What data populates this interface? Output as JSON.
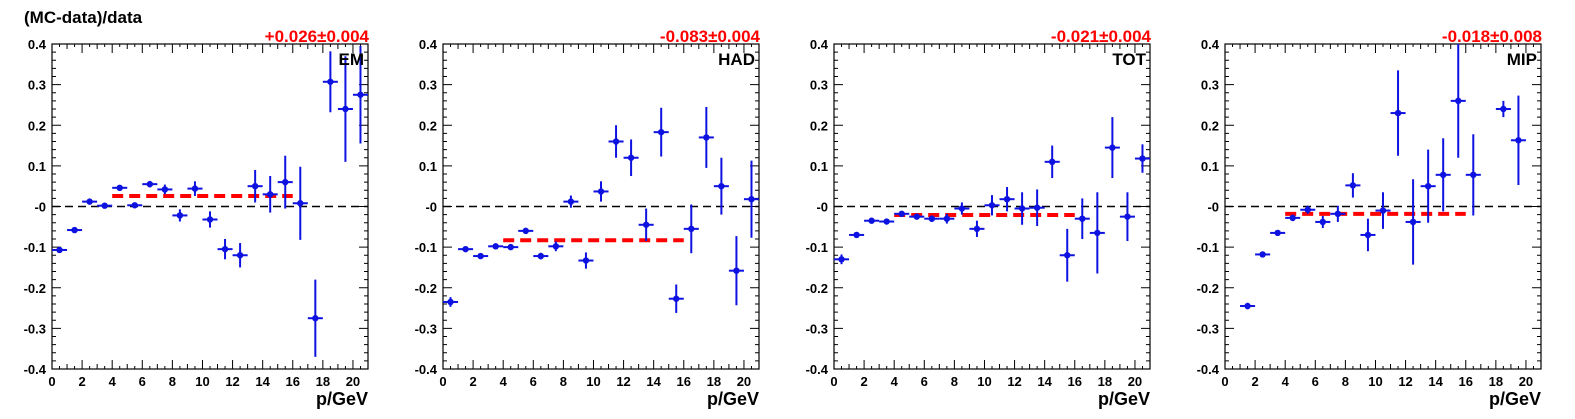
{
  "ylabel": "(MC-data)/data",
  "xlabel": "p/GeV",
  "colors": {
    "points": "#0d12e0",
    "fit": "#ff0000",
    "zero": "#000000"
  },
  "chart_data": [
    {
      "type": "scatter",
      "title": "EM",
      "fit_label": "+0.026±0.004",
      "fit": {
        "value": 0.026,
        "x_range": [
          4,
          16
        ]
      },
      "xlim": [
        0,
        21
      ],
      "ylim": [
        -0.4,
        0.4
      ],
      "xticks": [
        "0",
        "2",
        "4",
        "6",
        "8",
        "10",
        "12",
        "14",
        "16",
        "18",
        "20"
      ],
      "yticks": [
        "-0.4",
        "-0.3",
        "-0.2",
        "-0.1",
        "-0",
        "0.1",
        "0.2",
        "0.3",
        "0.4"
      ],
      "points": [
        {
          "x": 0.5,
          "y": -0.107,
          "err": 0.005
        },
        {
          "x": 1.5,
          "y": -0.058,
          "err": 0.005
        },
        {
          "x": 2.5,
          "y": 0.012,
          "err": 0.005
        },
        {
          "x": 3.5,
          "y": 0.002,
          "err": 0.005
        },
        {
          "x": 4.5,
          "y": 0.046,
          "err": 0.006
        },
        {
          "x": 5.5,
          "y": 0.003,
          "err": 0.006
        },
        {
          "x": 6.5,
          "y": 0.055,
          "err": 0.008
        },
        {
          "x": 7.5,
          "y": 0.042,
          "err": 0.012
        },
        {
          "x": 8.5,
          "y": -0.022,
          "err": 0.015
        },
        {
          "x": 9.5,
          "y": 0.044,
          "err": 0.018
        },
        {
          "x": 10.5,
          "y": -0.032,
          "err": 0.02
        },
        {
          "x": 11.5,
          "y": -0.105,
          "err": 0.025
        },
        {
          "x": 12.5,
          "y": -0.12,
          "err": 0.03
        },
        {
          "x": 13.5,
          "y": 0.05,
          "err": 0.04
        },
        {
          "x": 14.5,
          "y": 0.03,
          "err": 0.045
        },
        {
          "x": 15.5,
          "y": 0.06,
          "err": 0.065
        },
        {
          "x": 16.5,
          "y": 0.008,
          "err": 0.09
        },
        {
          "x": 17.5,
          "y": -0.275,
          "err": 0.095
        },
        {
          "x": 18.5,
          "y": 0.307,
          "err": 0.075
        },
        {
          "x": 19.5,
          "y": 0.24,
          "err": 0.13
        },
        {
          "x": 20.5,
          "y": 0.275,
          "err": 0.12
        }
      ]
    },
    {
      "type": "scatter",
      "title": "HAD",
      "fit_label": "-0.083±0.004",
      "fit": {
        "value": -0.083,
        "x_range": [
          4,
          16
        ]
      },
      "xlim": [
        0,
        21
      ],
      "ylim": [
        -0.4,
        0.4
      ],
      "xticks": [
        "0",
        "2",
        "4",
        "6",
        "8",
        "10",
        "12",
        "14",
        "16",
        "18",
        "20"
      ],
      "yticks": [
        "-0.4",
        "-0.3",
        "-0.2",
        "-0.1",
        "-0",
        "0.1",
        "0.2",
        "0.3",
        "0.4"
      ],
      "points": [
        {
          "x": 0.5,
          "y": -0.235,
          "err": 0.012
        },
        {
          "x": 1.5,
          "y": -0.105,
          "err": 0.005
        },
        {
          "x": 2.5,
          "y": -0.122,
          "err": 0.005
        },
        {
          "x": 3.5,
          "y": -0.098,
          "err": 0.005
        },
        {
          "x": 4.5,
          "y": -0.1,
          "err": 0.006
        },
        {
          "x": 5.5,
          "y": -0.06,
          "err": 0.006
        },
        {
          "x": 6.5,
          "y": -0.122,
          "err": 0.008
        },
        {
          "x": 7.5,
          "y": -0.098,
          "err": 0.012
        },
        {
          "x": 8.5,
          "y": 0.012,
          "err": 0.015
        },
        {
          "x": 9.5,
          "y": -0.133,
          "err": 0.02
        },
        {
          "x": 10.5,
          "y": 0.037,
          "err": 0.025
        },
        {
          "x": 11.5,
          "y": 0.16,
          "err": 0.04
        },
        {
          "x": 12.5,
          "y": 0.12,
          "err": 0.045
        },
        {
          "x": 13.5,
          "y": -0.045,
          "err": 0.04
        },
        {
          "x": 14.5,
          "y": 0.183,
          "err": 0.06
        },
        {
          "x": 15.5,
          "y": -0.227,
          "err": 0.035
        },
        {
          "x": 16.5,
          "y": -0.055,
          "err": 0.06
        },
        {
          "x": 17.5,
          "y": 0.17,
          "err": 0.075
        },
        {
          "x": 18.5,
          "y": 0.05,
          "err": 0.07
        },
        {
          "x": 19.5,
          "y": -0.158,
          "err": 0.085
        },
        {
          "x": 20.5,
          "y": 0.018,
          "err": 0.095
        }
      ]
    },
    {
      "type": "scatter",
      "title": "TOT",
      "fit_label": "-0.021±0.004",
      "fit": {
        "value": -0.021,
        "x_range": [
          4,
          16
        ]
      },
      "xlim": [
        0,
        21
      ],
      "ylim": [
        -0.4,
        0.4
      ],
      "xticks": [
        "0",
        "2",
        "4",
        "6",
        "8",
        "10",
        "12",
        "14",
        "16",
        "18",
        "20"
      ],
      "yticks": [
        "-0.4",
        "-0.3",
        "-0.2",
        "-0.1",
        "-0",
        "0.1",
        "0.2",
        "0.3",
        "0.4"
      ],
      "points": [
        {
          "x": 0.5,
          "y": -0.13,
          "err": 0.012
        },
        {
          "x": 1.5,
          "y": -0.07,
          "err": 0.005
        },
        {
          "x": 2.5,
          "y": -0.035,
          "err": 0.005
        },
        {
          "x": 3.5,
          "y": -0.037,
          "err": 0.005
        },
        {
          "x": 4.5,
          "y": -0.018,
          "err": 0.006
        },
        {
          "x": 5.5,
          "y": -0.025,
          "err": 0.006
        },
        {
          "x": 6.5,
          "y": -0.03,
          "err": 0.008
        },
        {
          "x": 7.5,
          "y": -0.03,
          "err": 0.012
        },
        {
          "x": 8.5,
          "y": -0.005,
          "err": 0.015
        },
        {
          "x": 9.5,
          "y": -0.055,
          "err": 0.02
        },
        {
          "x": 10.5,
          "y": 0.003,
          "err": 0.025
        },
        {
          "x": 11.5,
          "y": 0.018,
          "err": 0.03
        },
        {
          "x": 12.5,
          "y": -0.005,
          "err": 0.04
        },
        {
          "x": 13.5,
          "y": -0.003,
          "err": 0.045
        },
        {
          "x": 14.5,
          "y": 0.11,
          "err": 0.04
        },
        {
          "x": 15.5,
          "y": -0.12,
          "err": 0.065
        },
        {
          "x": 16.5,
          "y": -0.03,
          "err": 0.05
        },
        {
          "x": 17.5,
          "y": -0.065,
          "err": 0.1
        },
        {
          "x": 18.5,
          "y": 0.145,
          "err": 0.075
        },
        {
          "x": 19.5,
          "y": -0.025,
          "err": 0.06
        },
        {
          "x": 20.5,
          "y": 0.118,
          "err": 0.035
        }
      ]
    },
    {
      "type": "scatter",
      "title": "MIP",
      "fit_label": "-0.018±0.008",
      "fit": {
        "value": -0.018,
        "x_range": [
          4,
          16
        ]
      },
      "xlim": [
        0,
        21
      ],
      "ylim": [
        -0.4,
        0.4
      ],
      "xticks": [
        "0",
        "2",
        "4",
        "6",
        "8",
        "10",
        "12",
        "14",
        "16",
        "18",
        "20"
      ],
      "yticks": [
        "-0.4",
        "-0.3",
        "-0.2",
        "-0.1",
        "-0",
        "0.1",
        "0.2",
        "0.3",
        "0.4"
      ],
      "points": [
        {
          "x": 1.5,
          "y": -0.245,
          "err": 0.008
        },
        {
          "x": 2.5,
          "y": -0.118,
          "err": 0.006
        },
        {
          "x": 3.5,
          "y": -0.065,
          "err": 0.006
        },
        {
          "x": 4.5,
          "y": -0.028,
          "err": 0.008
        },
        {
          "x": 5.5,
          "y": -0.008,
          "err": 0.01
        },
        {
          "x": 6.5,
          "y": -0.038,
          "err": 0.015
        },
        {
          "x": 7.5,
          "y": -0.018,
          "err": 0.02
        },
        {
          "x": 8.5,
          "y": 0.052,
          "err": 0.03
        },
        {
          "x": 9.5,
          "y": -0.07,
          "err": 0.04
        },
        {
          "x": 10.5,
          "y": -0.01,
          "err": 0.045
        },
        {
          "x": 11.5,
          "y": 0.23,
          "err": 0.105
        },
        {
          "x": 12.5,
          "y": -0.038,
          "err": 0.105
        },
        {
          "x": 13.5,
          "y": 0.05,
          "err": 0.09
        },
        {
          "x": 14.5,
          "y": 0.078,
          "err": 0.09
        },
        {
          "x": 15.5,
          "y": 0.26,
          "err": 0.14
        },
        {
          "x": 16.5,
          "y": 0.078,
          "err": 0.1
        },
        {
          "x": 18.5,
          "y": 0.24,
          "err": 0.02
        },
        {
          "x": 19.5,
          "y": 0.163,
          "err": 0.11
        }
      ]
    }
  ]
}
